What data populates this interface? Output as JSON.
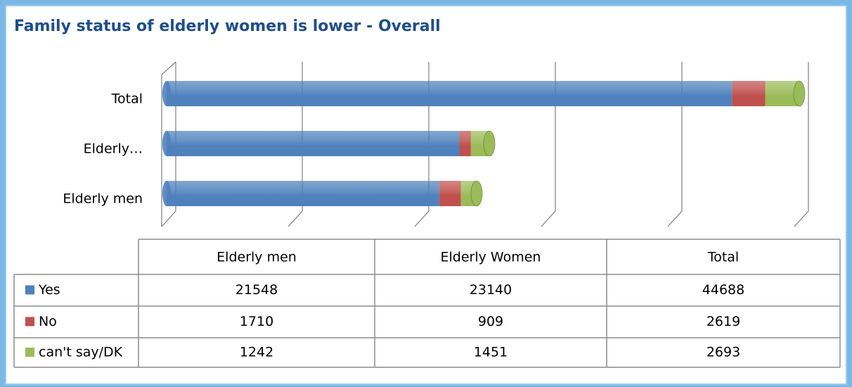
{
  "chart_data": {
    "type": "bar",
    "orientation": "horizontal",
    "stacked": true,
    "title": "Family status of elderly women is lower - Overall",
    "categories": [
      "Elderly men",
      "Elderly Women",
      "Total"
    ],
    "category_axis_labels": [
      "Elderly men",
      "Elderly…",
      "Total"
    ],
    "series": [
      {
        "name": "Yes",
        "color": "#4f81bd",
        "values": [
          21548,
          23140,
          44688
        ]
      },
      {
        "name": "No",
        "color": "#c0504d",
        "values": [
          1710,
          909,
          2619
        ]
      },
      {
        "name": "can't say/DK",
        "color": "#9bbb59",
        "values": [
          1242,
          1451,
          2693
        ]
      }
    ],
    "xlim": [
      0,
      50000
    ],
    "xticks": [
      0,
      10000,
      20000,
      30000,
      40000,
      50000
    ],
    "grid": true
  }
}
